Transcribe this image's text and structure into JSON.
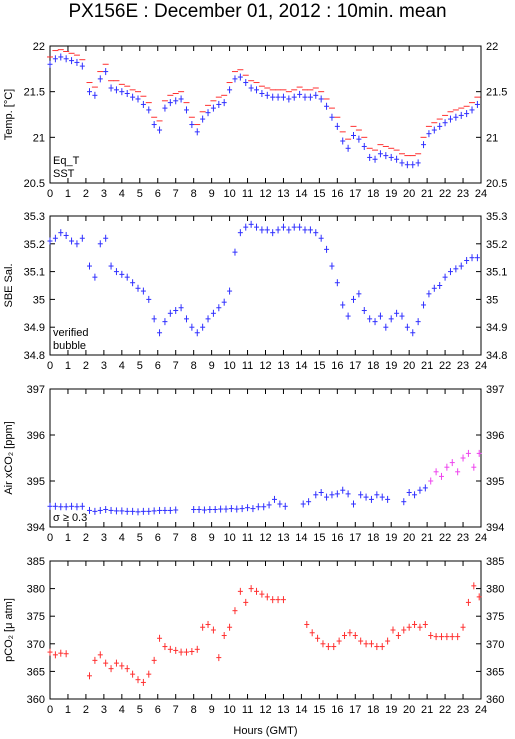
{
  "title": "PX156E : December 01, 2012 : 10min. mean",
  "x_axis_label": "Hours (GMT)",
  "chart_data": [
    {
      "type": "scatter",
      "ylabel": "Temp. [°C]",
      "xlim": [
        0,
        24
      ],
      "ylim": [
        20.5,
        22
      ],
      "yticks": [
        "20.5",
        "21",
        "21.5",
        "22"
      ],
      "yticks_values": [
        20.5,
        21,
        21.5,
        22
      ],
      "legend": [
        {
          "label": "Eq_T",
          "color": "#cc0000"
        },
        {
          "label": "SST",
          "color": "#0000cc"
        }
      ],
      "series": [
        {
          "name": "Eq_T",
          "color": "#ff3030",
          "marker": "dash",
          "x": [
            0.0,
            0.3,
            0.6,
            0.9,
            1.2,
            1.5,
            1.8,
            2.2,
            2.5,
            2.8,
            3.1,
            3.4,
            3.7,
            4.0,
            4.3,
            4.6,
            4.9,
            5.2,
            5.5,
            5.8,
            6.1,
            6.4,
            6.7,
            7.0,
            7.3,
            7.6,
            7.9,
            8.2,
            8.5,
            8.8,
            9.1,
            9.4,
            9.7,
            10.0,
            10.3,
            10.6,
            10.9,
            11.2,
            11.5,
            11.8,
            12.1,
            12.4,
            12.7,
            13.0,
            13.3,
            13.6,
            13.9,
            14.2,
            14.5,
            14.8,
            15.1,
            15.4,
            15.7,
            16.0,
            16.3,
            16.6,
            16.9,
            17.2,
            17.5,
            17.8,
            18.1,
            18.4,
            18.7,
            19.0,
            19.3,
            19.6,
            19.9,
            20.2,
            20.5,
            20.8,
            21.1,
            21.4,
            21.7,
            22.0,
            22.3,
            22.6,
            22.9,
            23.2,
            23.5,
            23.8
          ],
          "y": [
            21.88,
            21.95,
            21.96,
            21.94,
            21.92,
            21.9,
            21.85,
            21.6,
            21.55,
            21.72,
            21.8,
            21.62,
            21.62,
            21.58,
            21.56,
            21.52,
            21.5,
            21.45,
            21.38,
            21.22,
            21.18,
            21.4,
            21.46,
            21.48,
            21.5,
            21.38,
            21.22,
            21.14,
            21.28,
            21.35,
            21.4,
            21.44,
            21.46,
            21.6,
            21.72,
            21.74,
            21.68,
            21.62,
            21.6,
            21.56,
            21.54,
            21.52,
            21.52,
            21.52,
            21.5,
            21.52,
            21.55,
            21.52,
            21.52,
            21.54,
            21.5,
            21.42,
            21.32,
            21.22,
            21.06,
            20.98,
            21.12,
            21.08,
            21.0,
            20.88,
            20.86,
            20.92,
            20.9,
            20.88,
            20.86,
            20.82,
            20.8,
            20.8,
            20.82,
            21.0,
            21.12,
            21.16,
            21.2,
            21.24,
            21.28,
            21.3,
            21.32,
            21.34,
            21.38,
            21.44
          ]
        },
        {
          "name": "SST",
          "color": "#3030ff",
          "marker": "cross",
          "x": [
            0.0,
            0.3,
            0.6,
            0.9,
            1.2,
            1.5,
            1.8,
            2.2,
            2.5,
            2.8,
            3.1,
            3.4,
            3.7,
            4.0,
            4.3,
            4.6,
            4.9,
            5.2,
            5.5,
            5.8,
            6.1,
            6.4,
            6.7,
            7.0,
            7.3,
            7.6,
            7.9,
            8.2,
            8.5,
            8.8,
            9.1,
            9.4,
            9.7,
            10.0,
            10.3,
            10.6,
            10.9,
            11.2,
            11.5,
            11.8,
            12.1,
            12.4,
            12.7,
            13.0,
            13.3,
            13.6,
            13.9,
            14.2,
            14.5,
            14.8,
            15.1,
            15.4,
            15.7,
            16.0,
            16.3,
            16.6,
            16.9,
            17.2,
            17.5,
            17.8,
            18.1,
            18.4,
            18.7,
            19.0,
            19.3,
            19.6,
            19.9,
            20.2,
            20.5,
            20.8,
            21.1,
            21.4,
            21.7,
            22.0,
            22.3,
            22.6,
            22.9,
            23.2,
            23.5,
            23.8
          ],
          "y": [
            21.8,
            21.86,
            21.88,
            21.86,
            21.84,
            21.82,
            21.78,
            21.5,
            21.46,
            21.64,
            21.72,
            21.54,
            21.52,
            21.5,
            21.48,
            21.44,
            21.42,
            21.36,
            21.3,
            21.14,
            21.08,
            21.32,
            21.38,
            21.4,
            21.42,
            21.3,
            21.14,
            21.06,
            21.2,
            21.27,
            21.32,
            21.36,
            21.38,
            21.52,
            21.64,
            21.66,
            21.6,
            21.54,
            21.52,
            21.48,
            21.46,
            21.44,
            21.44,
            21.44,
            21.42,
            21.44,
            21.47,
            21.44,
            21.44,
            21.46,
            21.42,
            21.34,
            21.22,
            21.12,
            20.96,
            20.88,
            21.02,
            20.98,
            20.9,
            20.78,
            20.76,
            20.82,
            20.8,
            20.78,
            20.76,
            20.72,
            20.7,
            20.7,
            20.72,
            20.92,
            21.04,
            21.08,
            21.12,
            21.16,
            21.2,
            21.22,
            21.24,
            21.26,
            21.3,
            21.36
          ]
        }
      ]
    },
    {
      "type": "scatter",
      "ylabel": "SBE Sal.",
      "xlim": [
        0,
        24
      ],
      "ylim": [
        34.8,
        35.3
      ],
      "yticks": [
        "34.8",
        "34.9",
        "35",
        "35.1",
        "35.2",
        "35.3"
      ],
      "yticks_values": [
        34.8,
        34.9,
        35.0,
        35.1,
        35.2,
        35.3
      ],
      "legend": [
        {
          "label": "verified",
          "color": "#0000cc"
        },
        {
          "label": "bubble",
          "color": "#cc00cc"
        }
      ],
      "series": [
        {
          "name": "verified",
          "color": "#3030ff",
          "marker": "cross",
          "x": [
            0.0,
            0.3,
            0.6,
            0.9,
            1.2,
            1.5,
            1.8,
            2.2,
            2.5,
            2.8,
            3.1,
            3.4,
            3.7,
            4.0,
            4.3,
            4.6,
            4.9,
            5.2,
            5.5,
            5.8,
            6.1,
            6.4,
            6.7,
            7.0,
            7.3,
            7.6,
            7.9,
            8.2,
            8.5,
            8.8,
            9.1,
            9.4,
            9.7,
            10.0,
            10.3,
            10.6,
            10.9,
            11.2,
            11.5,
            11.8,
            12.1,
            12.4,
            12.7,
            13.0,
            13.3,
            13.6,
            13.9,
            14.2,
            14.5,
            14.8,
            15.1,
            15.4,
            15.7,
            16.0,
            16.3,
            16.6,
            16.9,
            17.2,
            17.5,
            17.8,
            18.1,
            18.4,
            18.7,
            19.0,
            19.3,
            19.6,
            19.9,
            20.2,
            20.5,
            20.8,
            21.1,
            21.4,
            21.7,
            22.0,
            22.3,
            22.6,
            22.9,
            23.2,
            23.5,
            23.8
          ],
          "y": [
            35.21,
            35.22,
            35.24,
            35.23,
            35.21,
            35.2,
            35.22,
            35.12,
            35.08,
            35.2,
            35.22,
            35.12,
            35.1,
            35.09,
            35.08,
            35.06,
            35.04,
            35.03,
            35.0,
            34.93,
            34.88,
            34.92,
            34.95,
            34.96,
            34.97,
            34.93,
            34.9,
            34.88,
            34.9,
            34.93,
            34.95,
            34.97,
            34.99,
            35.03,
            35.17,
            35.24,
            35.26,
            35.27,
            35.26,
            35.25,
            35.25,
            35.24,
            35.25,
            35.26,
            35.25,
            35.26,
            35.26,
            35.25,
            35.25,
            35.24,
            35.22,
            35.18,
            35.12,
            35.06,
            34.98,
            34.94,
            35.0,
            35.02,
            34.96,
            34.93,
            34.92,
            34.94,
            34.9,
            34.93,
            34.95,
            34.94,
            34.9,
            34.88,
            34.92,
            34.98,
            35.02,
            35.04,
            35.05,
            35.08,
            35.1,
            35.11,
            35.12,
            35.14,
            35.15,
            35.15
          ]
        }
      ]
    },
    {
      "type": "scatter",
      "ylabel": "Air xCO₂ [ppm]",
      "xlim": [
        0,
        24
      ],
      "ylim": [
        394,
        397
      ],
      "yticks": [
        "394",
        "395",
        "396",
        "397"
      ],
      "yticks_values": [
        394,
        395,
        396,
        397
      ],
      "legend": [
        {
          "label": "σ ≥ 0.3",
          "color": "#cc00cc"
        }
      ],
      "series": [
        {
          "name": "",
          "color": "#3030ff",
          "marker": "cross",
          "x": [
            0.0,
            0.3,
            0.6,
            0.9,
            1.2,
            1.5,
            1.8,
            2.2,
            2.5,
            2.8,
            3.1,
            3.4,
            3.7,
            4.0,
            4.3,
            4.6,
            4.9,
            5.2,
            5.5,
            5.8,
            6.1,
            6.4,
            6.7,
            7.0,
            8.0,
            8.3,
            8.6,
            8.9,
            9.2,
            9.5,
            9.8,
            10.1,
            10.4,
            10.7,
            11.0,
            11.3,
            11.6,
            11.9,
            12.2,
            12.5,
            12.8,
            13.1,
            14.1,
            14.4,
            14.8,
            15.1,
            15.4,
            15.7,
            16.0,
            16.3,
            16.6,
            16.9,
            17.3,
            17.6,
            17.9,
            18.2,
            18.5,
            18.8,
            19.7,
            20.0,
            20.3,
            20.6,
            20.9
          ],
          "y": [
            394.45,
            394.45,
            394.44,
            394.44,
            394.45,
            394.44,
            394.45,
            394.36,
            394.34,
            394.36,
            394.38,
            394.36,
            394.35,
            394.35,
            394.34,
            394.34,
            394.33,
            394.34,
            394.34,
            394.35,
            394.36,
            394.36,
            394.36,
            394.37,
            394.38,
            394.38,
            394.37,
            394.38,
            394.38,
            394.39,
            394.39,
            394.4,
            394.39,
            394.4,
            394.42,
            394.4,
            394.44,
            394.44,
            394.48,
            394.6,
            394.5,
            394.45,
            394.5,
            394.55,
            394.7,
            394.75,
            394.65,
            394.7,
            394.72,
            394.8,
            394.72,
            394.5,
            394.7,
            394.65,
            394.6,
            394.7,
            394.65,
            394.6,
            394.55,
            394.75,
            394.7,
            394.8,
            394.85
          ]
        },
        {
          "name": "σ ≥ 0.3",
          "color": "#ee44ee",
          "marker": "cross",
          "x": [
            21.2,
            21.5,
            21.8,
            22.1,
            22.4,
            22.7,
            23.0,
            23.3,
            23.6,
            23.9
          ],
          "y": [
            395.0,
            395.2,
            395.1,
            395.3,
            395.4,
            395.2,
            395.5,
            395.6,
            395.3,
            395.6
          ]
        }
      ]
    },
    {
      "type": "scatter",
      "ylabel": "pCO₂ [μ atm]",
      "xlim": [
        0,
        24
      ],
      "ylim": [
        360,
        385
      ],
      "yticks": [
        "360",
        "365",
        "370",
        "375",
        "380",
        "385"
      ],
      "yticks_values": [
        360,
        365,
        370,
        375,
        380,
        385
      ],
      "series": [
        {
          "name": "",
          "color": "#ff3030",
          "marker": "cross",
          "x": [
            0.0,
            0.3,
            0.6,
            0.9,
            2.2,
            2.5,
            2.8,
            3.1,
            3.4,
            3.7,
            4.0,
            4.3,
            4.6,
            4.9,
            5.2,
            5.5,
            5.8,
            6.1,
            6.4,
            6.7,
            7.0,
            7.3,
            7.6,
            7.9,
            8.2,
            8.5,
            8.8,
            9.1,
            9.4,
            9.7,
            10.0,
            10.3,
            10.6,
            10.9,
            11.2,
            11.5,
            11.8,
            12.1,
            12.4,
            12.7,
            13.0,
            14.3,
            14.6,
            14.9,
            15.2,
            15.5,
            15.8,
            16.1,
            16.4,
            16.7,
            17.0,
            17.3,
            17.6,
            17.9,
            18.2,
            18.5,
            18.8,
            19.1,
            19.4,
            19.7,
            20.0,
            20.3,
            20.6,
            20.9,
            21.2,
            21.5,
            21.8,
            22.1,
            22.4,
            22.7,
            23.0,
            23.3,
            23.6,
            23.9
          ],
          "y": [
            368.5,
            368,
            368.3,
            368.2,
            364.2,
            367,
            368,
            366.5,
            365.5,
            366.5,
            366,
            365.5,
            364.5,
            363.5,
            363,
            364.5,
            367,
            371,
            369.5,
            369,
            368.8,
            368.5,
            368.5,
            368.6,
            369,
            373,
            373.5,
            372.5,
            367.5,
            371.5,
            373,
            376,
            379.5,
            377.5,
            380,
            379.5,
            379,
            378.5,
            378,
            378,
            378,
            373.5,
            372,
            371,
            370,
            369.5,
            369.5,
            370.5,
            371.5,
            372,
            371.5,
            370.5,
            370,
            370,
            369.5,
            369.5,
            370.5,
            372.5,
            371.5,
            372.5,
            373,
            373.5,
            373,
            373.5,
            371.5,
            371.3,
            371.3,
            371.3,
            371.3,
            371.3,
            373,
            377.5,
            380.5,
            378.5
          ]
        }
      ]
    }
  ]
}
